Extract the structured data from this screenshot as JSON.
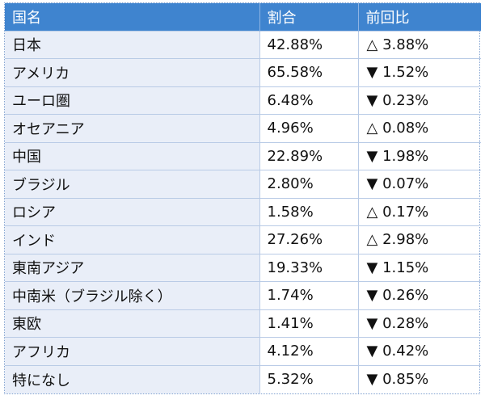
{
  "table": {
    "headers": [
      "国名",
      "割合",
      "前回比"
    ],
    "rows": [
      {
        "country": "日本",
        "share": "42.88%",
        "change": "△ 3.88%"
      },
      {
        "country": "アメリカ",
        "share": "65.58%",
        "change": "▼ 1.52%"
      },
      {
        "country": "ユーロ圏",
        "share": "6.48%",
        "change": "▼ 0.23%"
      },
      {
        "country": "オセアニア",
        "share": "4.96%",
        "change": "△ 0.08%"
      },
      {
        "country": "中国",
        "share": "22.89%",
        "change": "▼ 1.98%"
      },
      {
        "country": "ブラジル",
        "share": "2.80%",
        "change": "▼ 0.07%"
      },
      {
        "country": "ロシア",
        "share": "1.58%",
        "change": "△ 0.17%"
      },
      {
        "country": "インド",
        "share": "27.26%",
        "change": "△ 2.98%"
      },
      {
        "country": "東南アジア",
        "share": "19.33%",
        "change": "▼ 1.15%"
      },
      {
        "country": "中南米（ブラジル除く）",
        "share": "1.74%",
        "change": "▼ 0.26%"
      },
      {
        "country": "東欧",
        "share": "1.41%",
        "change": "▼ 0.28%"
      },
      {
        "country": "アフリカ",
        "share": "4.12%",
        "change": "▼ 0.42%"
      },
      {
        "country": "特になし",
        "share": "5.32%",
        "change": "▼ 0.85%"
      }
    ]
  },
  "colors": {
    "header_bg": "#3f84cf",
    "header_text": "#ffffff",
    "name_cell_bg": "#e9eef8"
  }
}
